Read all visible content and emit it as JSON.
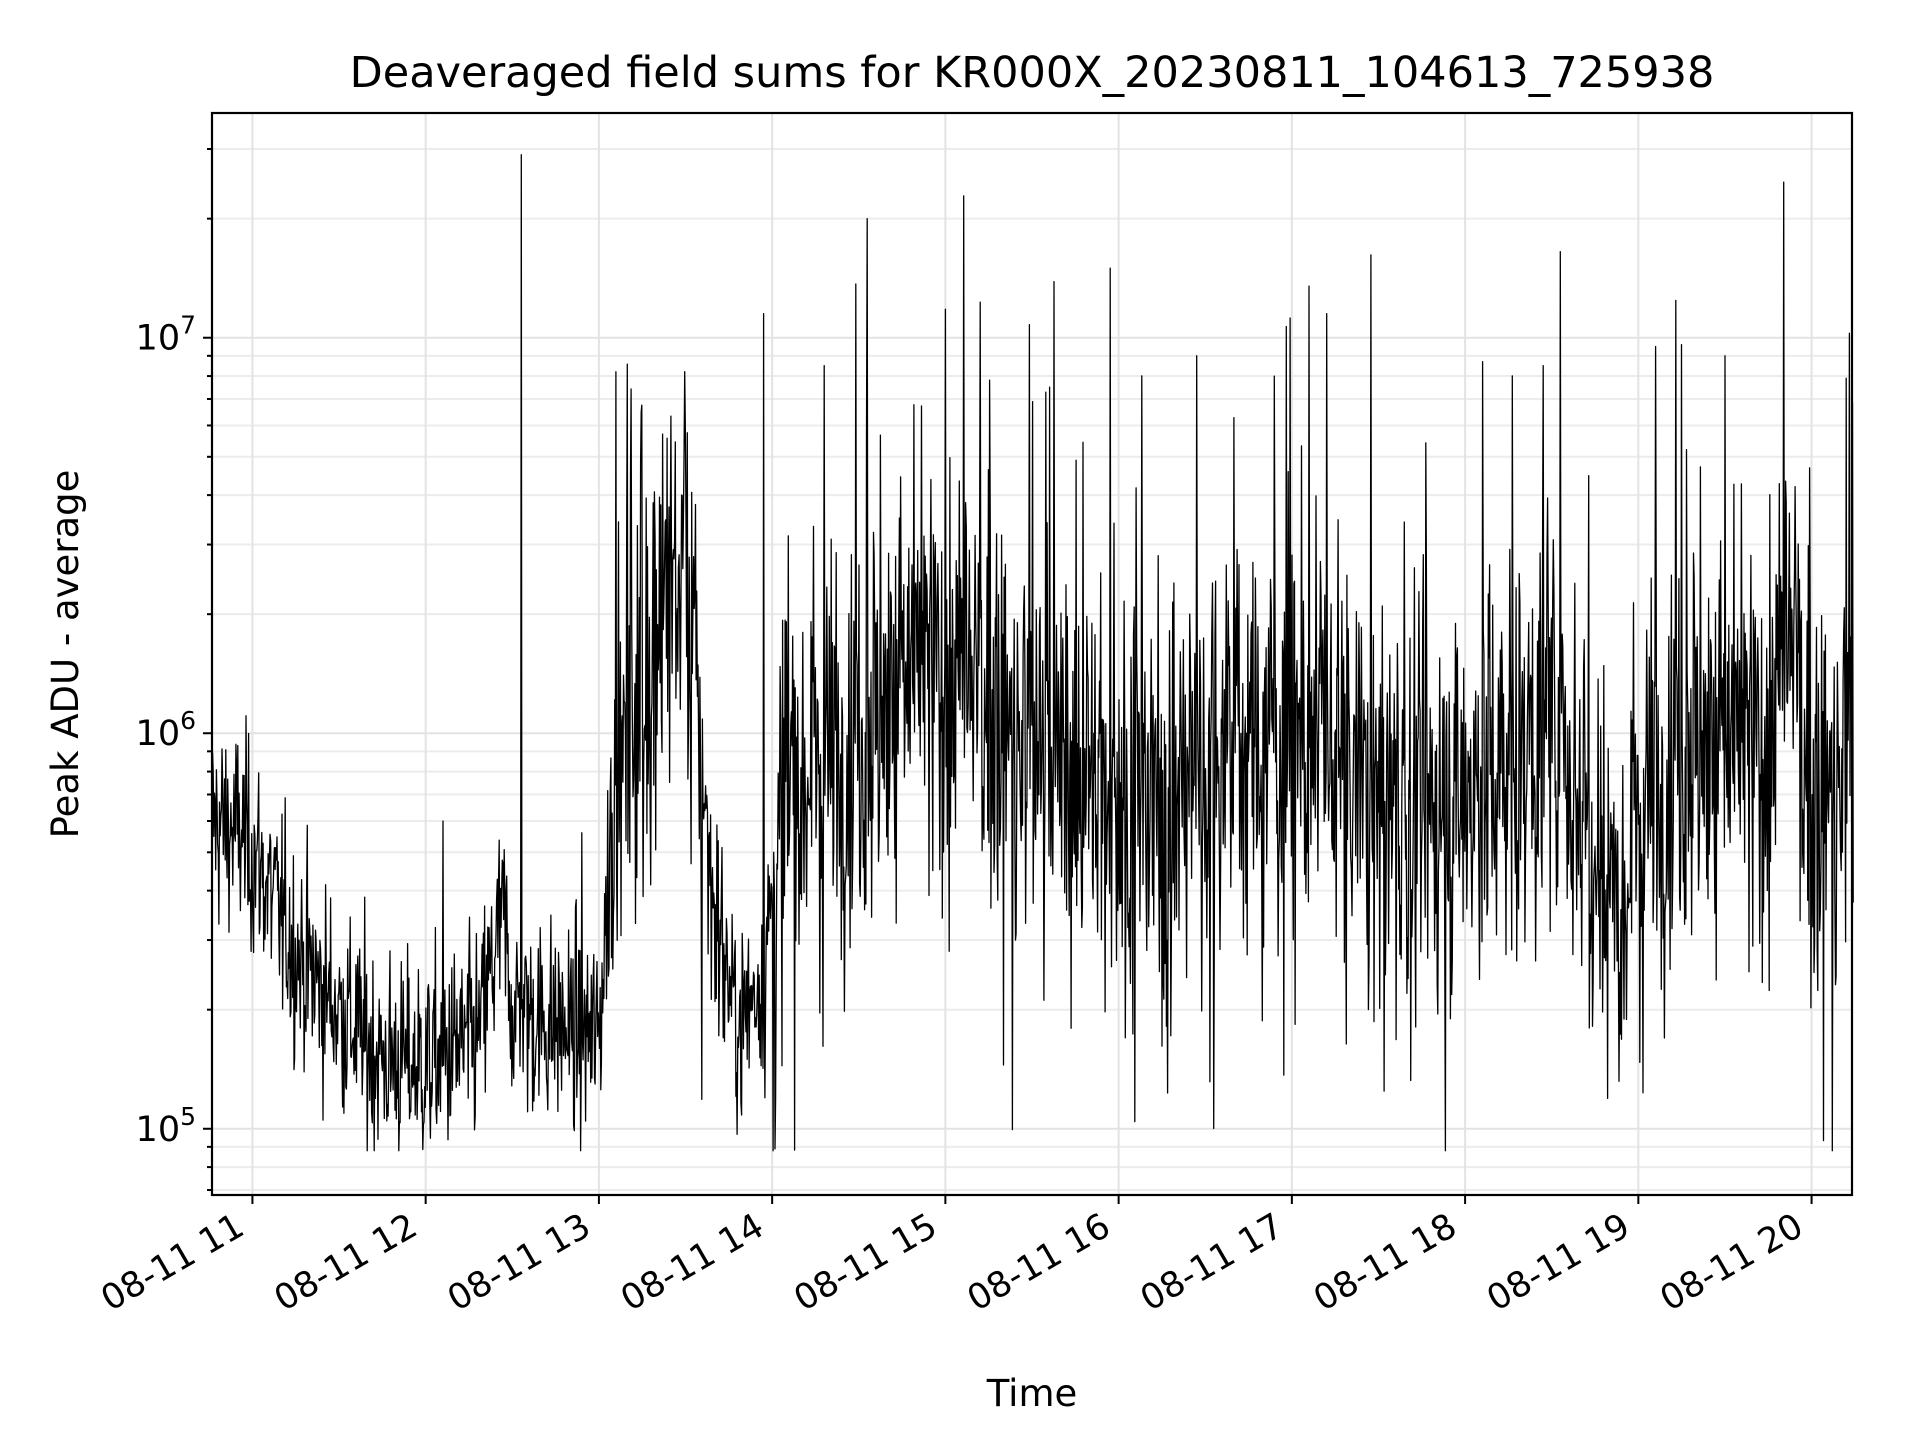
{
  "chart_data": {
    "type": "line",
    "title": "Deaveraged field sums for KR000X_20230811_104613_725938",
    "xlabel": "Time",
    "ylabel": "Peak ADU - average",
    "y_scale": "log",
    "ylim": [
      68000,
      37000000
    ],
    "xlim": [
      "2023-08-11 10:46",
      "2023-08-11 20:14"
    ],
    "grid": true,
    "legend": "none",
    "line_color": "#000000",
    "x_ticks": [
      {
        "time": "2023-08-11 11:00",
        "label": "08-11 11"
      },
      {
        "time": "2023-08-11 12:00",
        "label": "08-11 12"
      },
      {
        "time": "2023-08-11 13:00",
        "label": "08-11 13"
      },
      {
        "time": "2023-08-11 14:00",
        "label": "08-11 14"
      },
      {
        "time": "2023-08-11 15:00",
        "label": "08-11 15"
      },
      {
        "time": "2023-08-11 16:00",
        "label": "08-11 16"
      },
      {
        "time": "2023-08-11 17:00",
        "label": "08-11 17"
      },
      {
        "time": "2023-08-11 18:00",
        "label": "08-11 18"
      },
      {
        "time": "2023-08-11 19:00",
        "label": "08-11 19"
      },
      {
        "time": "2023-08-11 20:00",
        "label": "08-11 20"
      }
    ],
    "y_ticks": [
      {
        "value": 100000,
        "base": "10",
        "exp": "5"
      },
      {
        "value": 1000000,
        "base": "10",
        "exp": "6"
      },
      {
        "value": 10000000,
        "base": "10",
        "exp": "7"
      }
    ],
    "series": [
      {
        "values_desc": "piecewise level profile (x in decimal hours of 2023-08-11, median Peak ADU - average) with prominent spikes",
        "level_profile": [
          [
            10.77,
            600000
          ],
          [
            10.95,
            550000
          ],
          [
            11.05,
            450000
          ],
          [
            11.25,
            280000
          ],
          [
            11.5,
            200000
          ],
          [
            11.75,
            150000
          ],
          [
            12.0,
            145000
          ],
          [
            12.3,
            170000
          ],
          [
            12.45,
            350000
          ],
          [
            12.5,
            200000
          ],
          [
            12.8,
            180000
          ],
          [
            13.0,
            170000
          ],
          [
            13.1,
            900000
          ],
          [
            13.3,
            1700000
          ],
          [
            13.45,
            2600000
          ],
          [
            13.55,
            1500000
          ],
          [
            13.65,
            400000
          ],
          [
            13.8,
            180000
          ],
          [
            13.95,
            250000
          ],
          [
            14.1,
            900000
          ],
          [
            14.5,
            1000000
          ],
          [
            14.8,
            1500000
          ],
          [
            15.1,
            1300000
          ],
          [
            15.5,
            900000
          ],
          [
            16.0,
            700000
          ],
          [
            16.3,
            600000
          ],
          [
            16.5,
            900000
          ],
          [
            17.0,
            1000000
          ],
          [
            17.5,
            700000
          ],
          [
            17.8,
            600000
          ],
          [
            18.0,
            700000
          ],
          [
            18.3,
            900000
          ],
          [
            18.5,
            1000000
          ],
          [
            18.9,
            400000
          ],
          [
            19.0,
            700000
          ],
          [
            19.3,
            1000000
          ],
          [
            19.7,
            900000
          ],
          [
            19.9,
            1700000
          ],
          [
            20.0,
            600000
          ],
          [
            20.24,
            900000
          ]
        ],
        "spikes": [
          [
            12.55,
            29000000
          ],
          [
            14.55,
            20000000
          ],
          [
            18.55,
            16500000
          ],
          [
            15.95,
            15000000
          ],
          [
            16.45,
            9000000
          ],
          [
            17.1,
            13500000
          ],
          [
            15.2,
            12300000
          ],
          [
            13.95,
            11500000
          ],
          [
            15.0,
            11800000
          ],
          [
            19.1,
            9500000
          ],
          [
            13.1,
            8200000
          ],
          [
            14.3,
            8500000
          ],
          [
            18.45,
            8500000
          ],
          [
            19.25,
            9600000
          ],
          [
            19.5,
            9000000
          ],
          [
            17.2,
            11500000
          ],
          [
            15.6,
            7500000
          ],
          [
            16.9,
            8000000
          ],
          [
            18.1,
            8700000
          ],
          [
            20.2,
            7900000
          ],
          [
            13.5,
            5700000
          ],
          [
            12.9,
            560000
          ],
          [
            12.1,
            600000
          ]
        ]
      }
    ]
  }
}
